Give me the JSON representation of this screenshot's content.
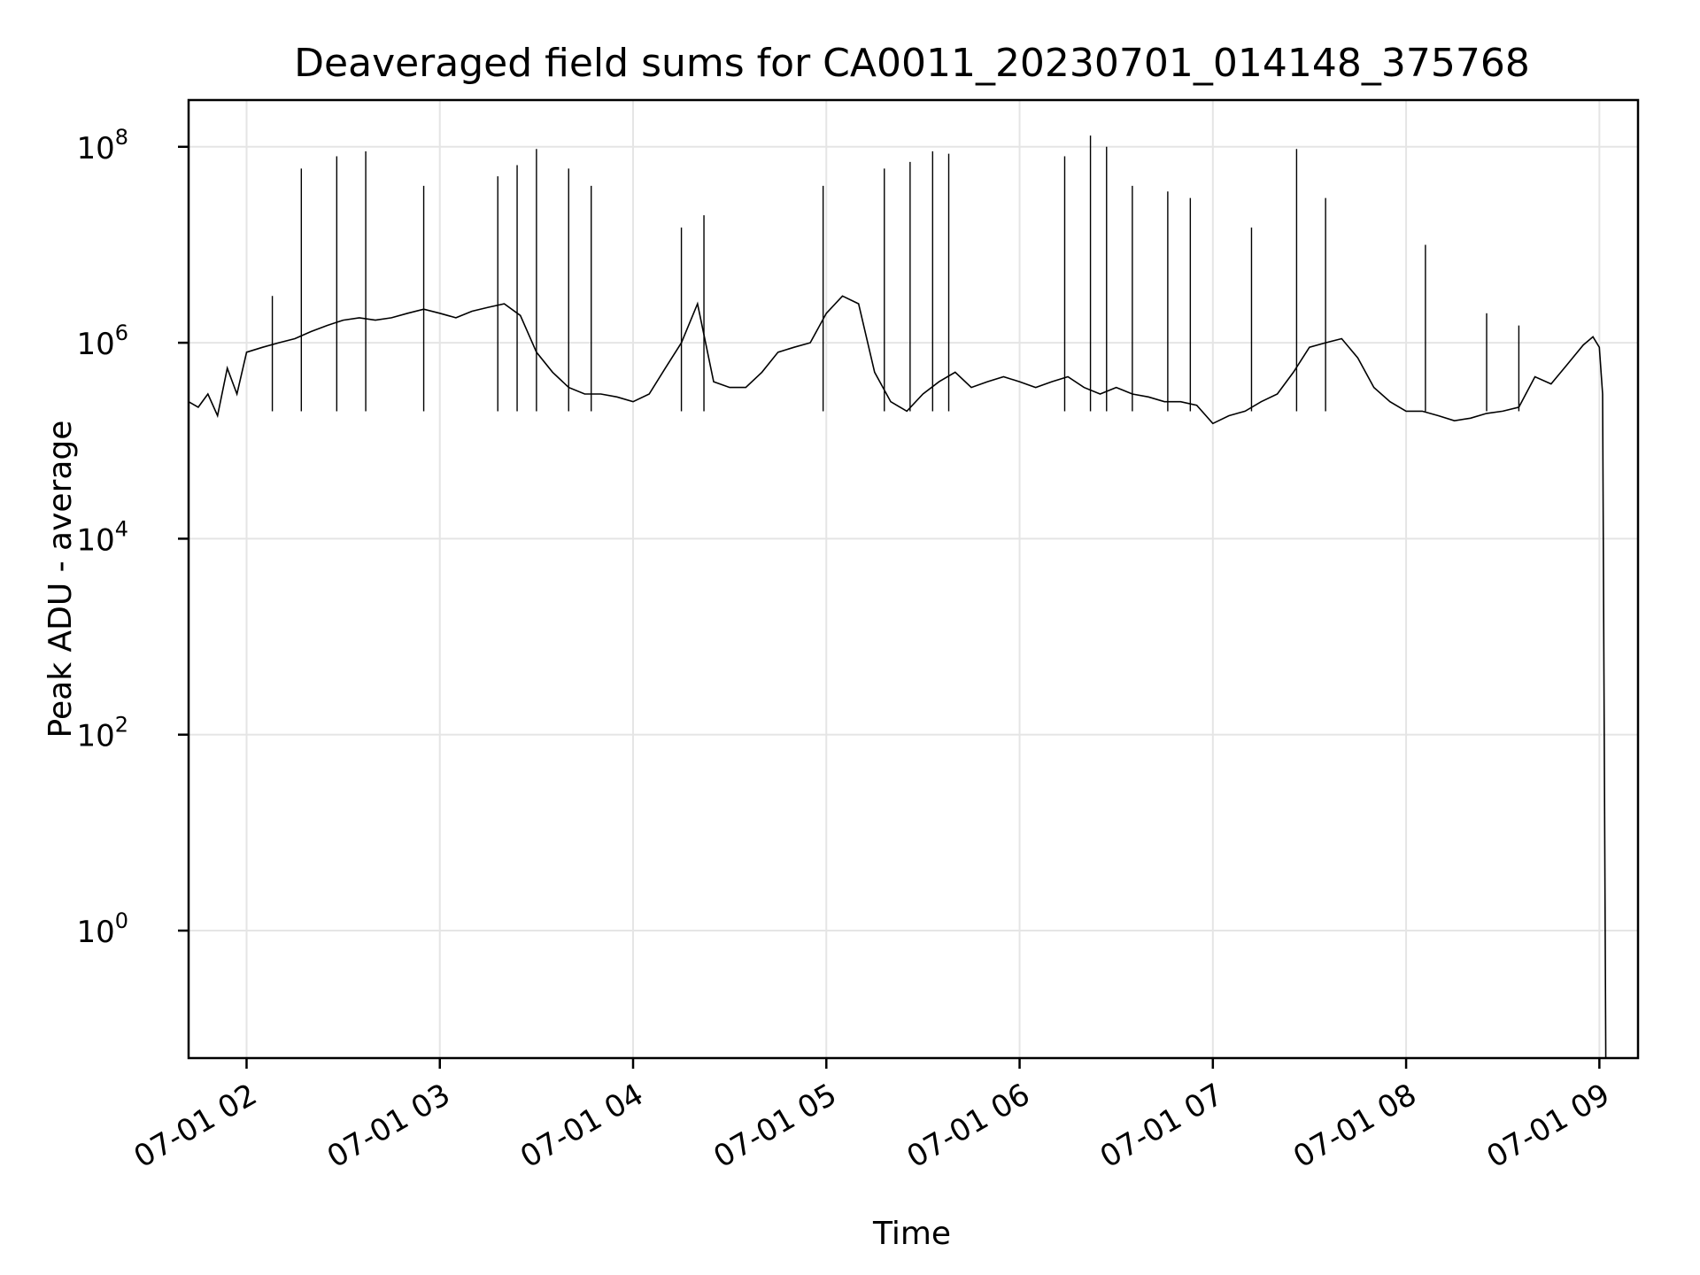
{
  "chart_data": {
    "type": "line",
    "title": "Deaveraged field sums for CA0011_20230701_014148_375768",
    "xlabel": "Time",
    "ylabel": "Peak ADU - average",
    "yscale": "log",
    "xlim": [
      "07-01 01:42",
      "07-01 09:12"
    ],
    "ylim": [
      0.05,
      300000000
    ],
    "x_ticks": [
      "07-01 02",
      "07-01 03",
      "07-01 04",
      "07-01 05",
      "07-01 06",
      "07-01 07",
      "07-01 08",
      "07-01 09"
    ],
    "y_ticks": [
      {
        "base": "10",
        "exp": "0"
      },
      {
        "base": "10",
        "exp": "2"
      },
      {
        "base": "10",
        "exp": "4"
      },
      {
        "base": "10",
        "exp": "6"
      },
      {
        "base": "10",
        "exp": "8"
      }
    ],
    "grid": true,
    "line_color": "#000000",
    "series": [
      {
        "x": [
          "07-01 01:42",
          "07-01 01:45",
          "07-01 01:48",
          "07-01 01:51",
          "07-01 01:54",
          "07-01 01:57",
          "07-01 02:00",
          "07-01 02:05",
          "07-01 02:10",
          "07-01 02:15",
          "07-01 02:20",
          "07-01 02:25",
          "07-01 02:30",
          "07-01 02:35",
          "07-01 02:40",
          "07-01 02:45",
          "07-01 02:50",
          "07-01 02:55",
          "07-01 03:00",
          "07-01 03:05",
          "07-01 03:10",
          "07-01 03:15",
          "07-01 03:20",
          "07-01 03:25",
          "07-01 03:30",
          "07-01 03:35",
          "07-01 03:40",
          "07-01 03:45",
          "07-01 03:50",
          "07-01 03:55",
          "07-01 04:00",
          "07-01 04:05",
          "07-01 04:10",
          "07-01 04:15",
          "07-01 04:20",
          "07-01 04:25",
          "07-01 04:30",
          "07-01 04:35",
          "07-01 04:40",
          "07-01 04:45",
          "07-01 04:50",
          "07-01 04:55",
          "07-01 05:00",
          "07-01 05:05",
          "07-01 05:10",
          "07-01 05:15",
          "07-01 05:20",
          "07-01 05:25",
          "07-01 05:30",
          "07-01 05:35",
          "07-01 05:40",
          "07-01 05:45",
          "07-01 05:50",
          "07-01 05:55",
          "07-01 06:00",
          "07-01 06:05",
          "07-01 06:10",
          "07-01 06:15",
          "07-01 06:20",
          "07-01 06:25",
          "07-01 06:30",
          "07-01 06:35",
          "07-01 06:40",
          "07-01 06:45",
          "07-01 06:50",
          "07-01 06:55",
          "07-01 07:00",
          "07-01 07:05",
          "07-01 07:10",
          "07-01 07:15",
          "07-01 07:20",
          "07-01 07:25",
          "07-01 07:30",
          "07-01 07:35",
          "07-01 07:40",
          "07-01 07:45",
          "07-01 07:50",
          "07-01 07:55",
          "07-01 08:00",
          "07-01 08:05",
          "07-01 08:10",
          "07-01 08:15",
          "07-01 08:20",
          "07-01 08:25",
          "07-01 08:30",
          "07-01 08:35",
          "07-01 08:40",
          "07-01 08:45",
          "07-01 08:50",
          "07-01 08:55",
          "07-01 08:58",
          "07-01 09:00",
          "07-01 09:01",
          "07-01 09:02"
        ],
        "values": [
          250000,
          220000,
          300000,
          180000,
          550000,
          300000,
          800000,
          900000,
          1000000,
          1100000,
          1300000,
          1500000,
          1700000,
          1800000,
          1700000,
          1800000,
          2000000,
          2200000,
          2000000,
          1800000,
          2100000,
          2300000,
          2500000,
          1900000,
          800000,
          500000,
          350000,
          300000,
          300000,
          280000,
          250000,
          300000,
          550000,
          1000000,
          2500000,
          400000,
          350000,
          350000,
          500000,
          800000,
          900000,
          1000000,
          2000000,
          3000000,
          2500000,
          500000,
          250000,
          200000,
          300000,
          400000,
          500000,
          350000,
          400000,
          450000,
          400000,
          350000,
          400000,
          450000,
          350000,
          300000,
          350000,
          300000,
          280000,
          250000,
          250000,
          230000,
          150000,
          180000,
          200000,
          250000,
          300000,
          500000,
          900000,
          1000000,
          1100000,
          700000,
          350000,
          250000,
          200000,
          200000,
          180000,
          160000,
          170000,
          190000,
          200000,
          220000,
          450000,
          380000,
          600000,
          950000,
          1150000,
          900000,
          300000,
          0.05
        ],
        "spikes": [
          {
            "x": "07-01 02:08",
            "y": 3000000
          },
          {
            "x": "07-01 02:17",
            "y": 60000000
          },
          {
            "x": "07-01 02:28",
            "y": 80000000
          },
          {
            "x": "07-01 02:37",
            "y": 90000000
          },
          {
            "x": "07-01 02:55",
            "y": 40000000
          },
          {
            "x": "07-01 03:18",
            "y": 50000000
          },
          {
            "x": "07-01 03:24",
            "y": 65000000
          },
          {
            "x": "07-01 03:30",
            "y": 95000000
          },
          {
            "x": "07-01 03:40",
            "y": 60000000
          },
          {
            "x": "07-01 03:47",
            "y": 40000000
          },
          {
            "x": "07-01 04:15",
            "y": 15000000
          },
          {
            "x": "07-01 04:22",
            "y": 20000000
          },
          {
            "x": "07-01 04:59",
            "y": 40000000
          },
          {
            "x": "07-01 05:18",
            "y": 60000000
          },
          {
            "x": "07-01 05:26",
            "y": 70000000
          },
          {
            "x": "07-01 05:33",
            "y": 90000000
          },
          {
            "x": "07-01 05:38",
            "y": 85000000
          },
          {
            "x": "07-01 06:14",
            "y": 80000000
          },
          {
            "x": "07-01 06:22",
            "y": 130000000
          },
          {
            "x": "07-01 06:27",
            "y": 100000000
          },
          {
            "x": "07-01 06:35",
            "y": 40000000
          },
          {
            "x": "07-01 06:46",
            "y": 35000000
          },
          {
            "x": "07-01 06:53",
            "y": 30000000
          },
          {
            "x": "07-01 07:12",
            "y": 15000000
          },
          {
            "x": "07-01 07:26",
            "y": 95000000
          },
          {
            "x": "07-01 07:35",
            "y": 30000000
          },
          {
            "x": "07-01 08:06",
            "y": 10000000
          },
          {
            "x": "07-01 08:25",
            "y": 2000000
          },
          {
            "x": "07-01 08:35",
            "y": 1500000
          }
        ]
      }
    ]
  }
}
